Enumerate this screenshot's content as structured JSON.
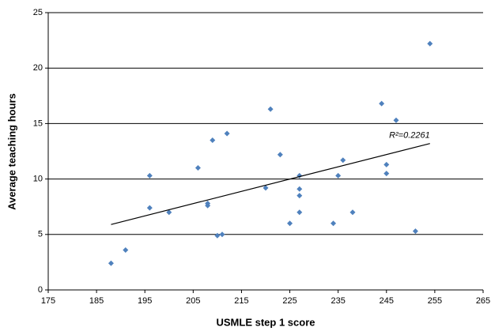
{
  "chart_data": {
    "type": "scatter",
    "x_label": "USMLE step 1 score",
    "y_label": "Average teaching hours",
    "xlim": [
      175,
      265
    ],
    "xticks": [
      175,
      185,
      195,
      205,
      215,
      225,
      235,
      245,
      255,
      265
    ],
    "ylim": [
      0,
      25
    ],
    "yticks": [
      0,
      5,
      10,
      15,
      20,
      25
    ],
    "grid": true,
    "series": [
      {
        "color": "#4f81bd",
        "x": [
          188,
          191,
          196,
          196,
          200,
          206,
          208,
          208,
          209,
          210,
          211,
          212,
          220,
          221,
          223,
          225,
          227,
          227,
          227,
          227,
          234,
          235,
          236,
          238,
          244,
          245,
          245,
          247,
          251,
          254
        ],
        "values": [
          2.4,
          3.6,
          7.4,
          10.3,
          7.0,
          11.0,
          7.8,
          7.6,
          13.5,
          4.9,
          5.0,
          14.1,
          9.2,
          16.3,
          12.2,
          6.0,
          10.3,
          9.1,
          8.5,
          7.0,
          6.0,
          10.3,
          11.7,
          7.0,
          16.8,
          11.3,
          10.5,
          15.3,
          5.3,
          22.2
        ]
      }
    ],
    "trendline": {
      "x": [
        188,
        254
      ],
      "values": [
        5.9,
        13.2
      ],
      "color": "#000000"
    },
    "annotation": "R²=0.2261"
  }
}
